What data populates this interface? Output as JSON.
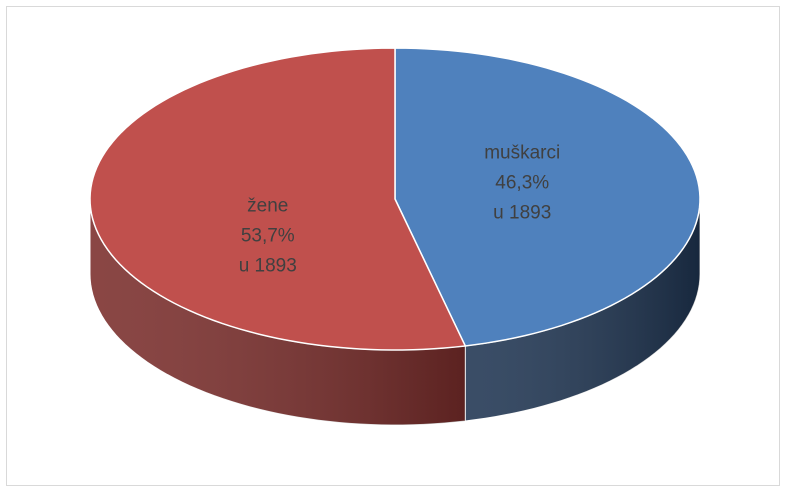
{
  "chart_data": {
    "type": "pie3d",
    "categories": [
      "muškarci",
      "žene"
    ],
    "values": [
      46.3,
      53.7
    ],
    "value_labels": [
      "46,3%",
      "53,7%"
    ],
    "annotations": [
      "u 1893",
      "u 1893"
    ],
    "colors": [
      "#4f81bd",
      "#c0504d"
    ],
    "side_colors": [
      "#1f3552",
      "#7a2d2b"
    ]
  }
}
